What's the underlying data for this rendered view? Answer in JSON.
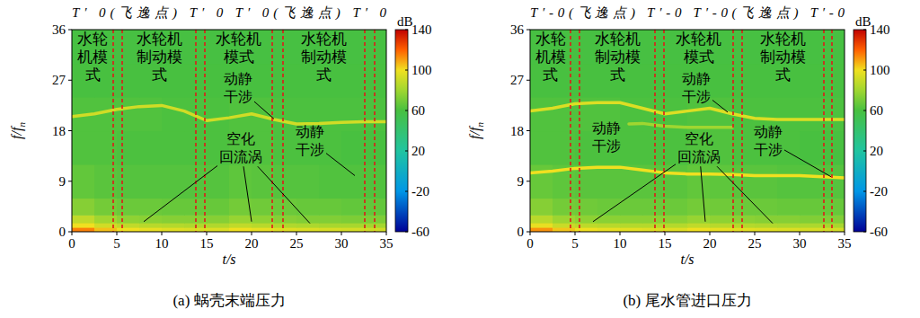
{
  "chart_data": [
    {
      "type": "spectrogram",
      "title": "(a) 蜗壳末端压力",
      "header": "T′ 0(飞逸点) T′ 0 T′ 0(飞逸点) T′ 0",
      "xlabel": "t/s",
      "ylabel": "f/fn",
      "xlim": [
        0,
        35
      ],
      "xticks": [
        0,
        5,
        10,
        15,
        20,
        25,
        30,
        35
      ],
      "ylim": [
        0,
        36
      ],
      "yticks": [
        0,
        9,
        18,
        27,
        36
      ],
      "colorbar": {
        "label": "dB",
        "range": [
          -60,
          140
        ],
        "ticks": [
          -60,
          -20,
          20,
          60,
          100,
          140
        ]
      },
      "cells": {
        "x_edges": [
          0,
          2.5,
          5,
          7.5,
          10,
          12.5,
          15,
          17.5,
          20,
          22.5,
          25,
          27.5,
          30,
          32.5,
          35
        ],
        "y_edges": [
          0,
          0.8,
          1.6,
          3,
          6,
          12,
          18,
          24,
          30,
          36
        ],
        "values": [
          [
            115,
            105,
            100,
            98,
            96,
            95,
            95,
            100,
            98,
            96,
            95,
            94,
            93,
            92
          ],
          [
            100,
            92,
            88,
            86,
            85,
            84,
            84,
            88,
            86,
            84,
            83,
            82,
            82,
            81
          ],
          [
            88,
            80,
            76,
            75,
            74,
            74,
            74,
            78,
            76,
            74,
            73,
            73,
            72,
            72
          ],
          [
            74,
            70,
            68,
            68,
            67,
            67,
            67,
            70,
            69,
            68,
            67,
            67,
            66,
            66
          ],
          [
            66,
            64,
            63,
            63,
            63,
            63,
            63,
            65,
            64,
            63,
            63,
            62,
            62,
            62
          ],
          [
            62,
            62,
            61,
            61,
            61,
            61,
            61,
            62,
            62,
            61,
            61,
            61,
            60,
            60
          ],
          [
            62,
            62,
            62,
            62,
            61,
            61,
            61,
            62,
            62,
            61,
            61,
            61,
            61,
            61
          ],
          [
            60,
            60,
            60,
            60,
            60,
            60,
            60,
            60,
            60,
            60,
            60,
            60,
            60,
            60
          ],
          [
            59,
            59,
            59,
            59,
            59,
            59,
            59,
            59,
            59,
            59,
            59,
            59,
            59,
            59
          ]
        ]
      },
      "series": [
        {
          "x": [
            0,
            2.5,
            5,
            7.5,
            10,
            12.5,
            15,
            17.5,
            20,
            22.5,
            25,
            27.5,
            30,
            32.5,
            35
          ],
          "values": [
            20.5,
            21,
            21.8,
            22.3,
            22.5,
            21.5,
            19.8,
            20.3,
            21,
            20,
            19.2,
            19.3,
            19.5,
            19.6,
            19.6
          ],
          "level": 92
        }
      ],
      "boundaries": [
        4.6,
        5.6,
        13.8,
        14.8,
        22.3,
        23.5,
        32.6,
        33.7
      ],
      "modes": [
        "水轮机模式",
        "水轮机制动模式",
        "水轮机模式",
        "水轮机制动模式"
      ],
      "annotations": [
        {
          "text": "动静干涉",
          "at": [
            18.5,
            25.8
          ],
          "targets": [
            [
              22.5,
              20.1
            ]
          ]
        },
        {
          "text": "动静干涉",
          "at": [
            26.5,
            16.3
          ],
          "targets": [
            [
              31.5,
              10
            ]
          ]
        },
        {
          "text": "空化回流涡",
          "at": [
            18.8,
            15
          ],
          "targets": [
            [
              8,
              1.8
            ],
            [
              20,
              1.8
            ],
            [
              26.5,
              1.5
            ]
          ]
        }
      ]
    },
    {
      "type": "spectrogram",
      "title": "(b) 尾水管进口压力",
      "header": "T′-0(飞逸点) T′-0 T′-0(飞逸点) T′-0",
      "xlabel": "t/s",
      "ylabel": "f/fn",
      "xlim": [
        0,
        35
      ],
      "xticks": [
        0,
        5,
        10,
        15,
        20,
        25,
        30,
        35
      ],
      "ylim": [
        0,
        36
      ],
      "yticks": [
        0,
        9,
        18,
        27,
        36
      ],
      "colorbar": {
        "label": "dB",
        "range": [
          -60,
          140
        ],
        "ticks": [
          -60,
          -20,
          20,
          60,
          100,
          140
        ]
      },
      "cells": {
        "x_edges": [
          0,
          2.5,
          5,
          7.5,
          10,
          12.5,
          15,
          17.5,
          20,
          22.5,
          25,
          27.5,
          30,
          32.5,
          35
        ],
        "y_edges": [
          0,
          0.8,
          1.6,
          3,
          6,
          12,
          18,
          24,
          30,
          36
        ],
        "values": [
          [
            112,
            104,
            100,
            98,
            97,
            96,
            96,
            100,
            98,
            97,
            96,
            95,
            94,
            93
          ],
          [
            98,
            90,
            87,
            86,
            85,
            85,
            85,
            88,
            86,
            85,
            84,
            83,
            83,
            82
          ],
          [
            86,
            79,
            76,
            75,
            75,
            75,
            75,
            78,
            76,
            75,
            74,
            74,
            73,
            73
          ],
          [
            74,
            70,
            69,
            68,
            68,
            68,
            68,
            70,
            69,
            68,
            68,
            67,
            67,
            67
          ],
          [
            67,
            65,
            64,
            64,
            64,
            64,
            64,
            66,
            65,
            64,
            64,
            63,
            63,
            63
          ],
          [
            62,
            62,
            61,
            61,
            61,
            61,
            61,
            62,
            62,
            61,
            61,
            61,
            60,
            60
          ],
          [
            62,
            62,
            62,
            62,
            61,
            61,
            61,
            62,
            62,
            61,
            61,
            61,
            61,
            61
          ],
          [
            60,
            60,
            60,
            60,
            60,
            60,
            60,
            60,
            60,
            60,
            60,
            60,
            60,
            60
          ],
          [
            59,
            59,
            59,
            59,
            59,
            59,
            59,
            59,
            59,
            59,
            59,
            59,
            59,
            59
          ]
        ]
      },
      "series": [
        {
          "x": [
            0,
            2.5,
            5,
            7.5,
            10,
            12.5,
            15,
            17.5,
            20,
            22.5,
            25,
            27.5,
            30,
            32.5,
            35
          ],
          "values": [
            21.5,
            22,
            22.8,
            23,
            23,
            22,
            21,
            21.5,
            22,
            21,
            20.2,
            20,
            20,
            20,
            20
          ],
          "level": 95
        },
        {
          "x": [
            0,
            2.5,
            5,
            7.5,
            10,
            12.5,
            15,
            17.5,
            20,
            22.5,
            25,
            27.5,
            30,
            32.5,
            35
          ],
          "values": [
            10.5,
            10.8,
            11.3,
            11.5,
            11.5,
            11,
            10.5,
            10.3,
            10.3,
            10.2,
            10,
            10,
            10,
            9.8,
            9.6
          ],
          "level": 100
        },
        {
          "x": [
            11,
            12.5,
            15,
            17.5,
            20,
            22.5
          ],
          "values": [
            19.2,
            19.3,
            18.8,
            18.6,
            18.6,
            18.6
          ],
          "level": 80
        }
      ],
      "boundaries": [
        4.5,
        5.5,
        13.9,
        14.9,
        22.6,
        23.6,
        32.7,
        33.6
      ],
      "modes": [
        "水轮机模式",
        "水轮机制动模式",
        "水轮机模式",
        "水轮机制动模式"
      ],
      "annotations": [
        {
          "text": "动静干涉",
          "at": [
            8.5,
            17
          ]
        },
        {
          "text": "动静干涉",
          "at": [
            18.5,
            25.8
          ],
          "targets": [
            [
              22,
              21.3
            ]
          ]
        },
        {
          "text": "动静干涉",
          "at": [
            26.5,
            16.3
          ],
          "targets": [
            [
              33.5,
              9.8
            ]
          ]
        },
        {
          "text": "空化回流涡",
          "at": [
            18.8,
            15
          ],
          "targets": [
            [
              7,
              1.8
            ],
            [
              19.5,
              1.8
            ],
            [
              27,
              1.5
            ]
          ]
        }
      ]
    }
  ]
}
